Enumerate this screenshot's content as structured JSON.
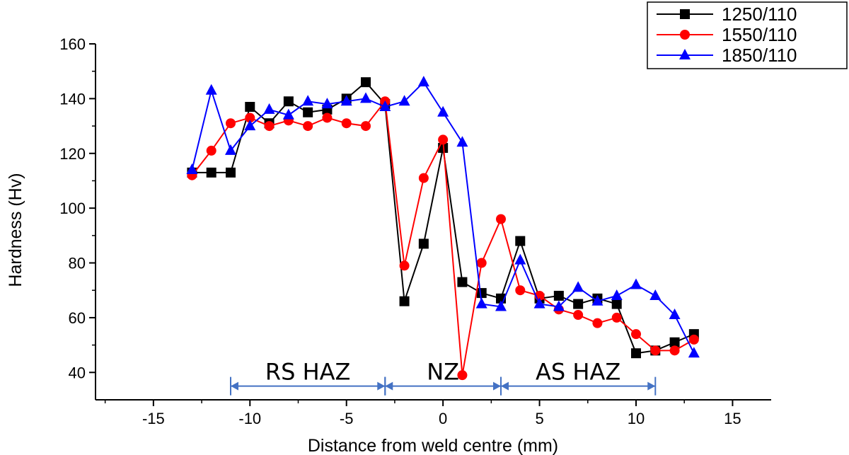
{
  "chart_data": {
    "type": "line",
    "xlabel": "Distance from weld centre (mm)",
    "ylabel": "Hardness (Hv)",
    "xlim": [
      -18,
      17
    ],
    "ylim": [
      30,
      160
    ],
    "xticks": [
      -15,
      -10,
      -5,
      0,
      5,
      10,
      15
    ],
    "yticks": [
      40,
      60,
      80,
      100,
      120,
      140,
      160
    ],
    "legend_position": "top-right",
    "series": [
      {
        "name": "1250/110",
        "color": "#000000",
        "marker": "square",
        "x": [
          -13,
          -12,
          -11,
          -10,
          -9,
          -8,
          -7,
          -6,
          -5,
          -4,
          -3,
          -2,
          -1,
          0,
          1,
          2,
          3,
          4,
          5,
          6,
          7,
          8,
          9,
          10,
          11,
          12,
          13
        ],
        "y": [
          113,
          113,
          113,
          137,
          131,
          139,
          135,
          136,
          140,
          146,
          138,
          66,
          87,
          122,
          73,
          69,
          67,
          88,
          67,
          68,
          65,
          67,
          65,
          47,
          48,
          51,
          54
        ]
      },
      {
        "name": "1550/110",
        "color": "#ff0000",
        "marker": "circle",
        "x": [
          -13,
          -12,
          -11,
          -10,
          -9,
          -8,
          -7,
          -6,
          -5,
          -4,
          -3,
          -2,
          -1,
          0,
          1,
          2,
          3,
          4,
          5,
          6,
          7,
          8,
          9,
          10,
          11,
          12,
          13
        ],
        "y": [
          112,
          121,
          131,
          133,
          130,
          132,
          130,
          133,
          131,
          130,
          139,
          79,
          111,
          125,
          39,
          80,
          96,
          70,
          68,
          63,
          61,
          58,
          60,
          54,
          48,
          48,
          52
        ]
      },
      {
        "name": "1850/110",
        "color": "#0000ff",
        "marker": "triangle",
        "x": [
          -13,
          -12,
          -11,
          -10,
          -9,
          -8,
          -7,
          -6,
          -5,
          -4,
          -3,
          -2,
          -1,
          0,
          1,
          2,
          3,
          4,
          5,
          6,
          7,
          8,
          9,
          10,
          11,
          12,
          13
        ],
        "y": [
          114,
          143,
          121,
          130,
          136,
          134,
          139,
          138,
          139,
          140,
          137,
          139,
          146,
          135,
          124,
          65,
          64,
          81,
          65,
          64,
          71,
          66,
          68,
          72,
          68,
          61,
          47
        ]
      }
    ],
    "annotations": [
      {
        "label": "RS HAZ",
        "from": -11,
        "to": -3,
        "y": 35
      },
      {
        "label": "NZ",
        "from": -3,
        "to": 3,
        "y": 35
      },
      {
        "label": "AS HAZ",
        "from": 3,
        "to": 11,
        "y": 35
      }
    ],
    "annotation_color": "#4472c4"
  }
}
